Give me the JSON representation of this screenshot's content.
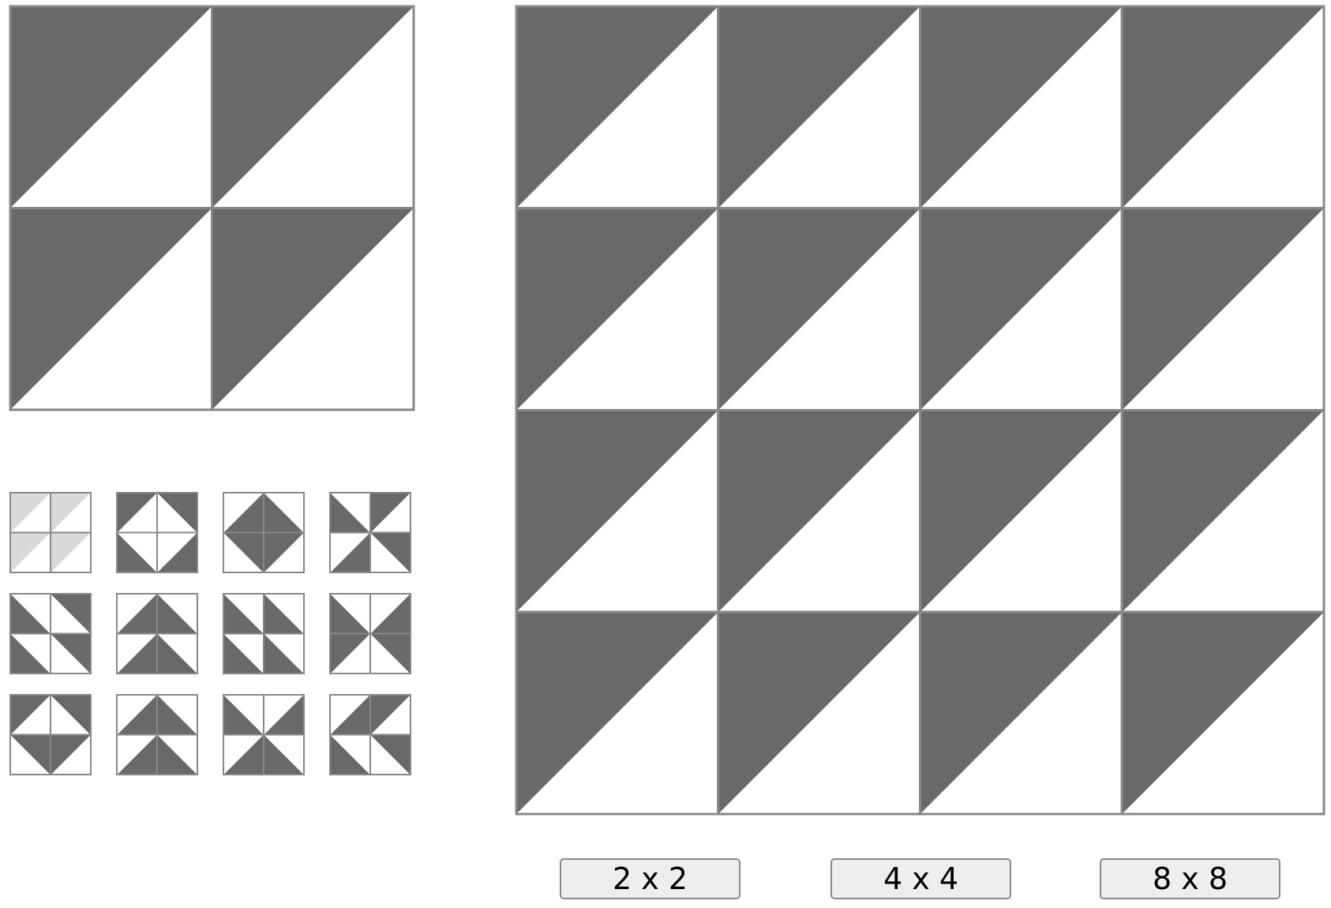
{
  "colors": {
    "dark": "#696969",
    "light": "#d9d9d9",
    "white": "#ffffff",
    "border": "#888888"
  },
  "current_block": {
    "grid": 2,
    "tiles": [
      "TL",
      "TL",
      "TL",
      "TL"
    ]
  },
  "pattern_options": [
    {
      "name": "pattern-option-1",
      "tiles": [
        "TL",
        "TL",
        "TL",
        "TL"
      ],
      "shade": "light"
    },
    {
      "name": "pattern-option-2",
      "tiles": [
        "TL",
        "TR",
        "BL",
        "BR"
      ],
      "shade": "dark"
    },
    {
      "name": "pattern-option-3",
      "tiles": [
        "BR",
        "BL",
        "TR",
        "TL"
      ],
      "shade": "dark"
    },
    {
      "name": "pattern-option-4",
      "tiles": [
        "BL",
        "TL",
        "BR",
        "TR"
      ],
      "shade": "dark"
    },
    {
      "name": "pattern-option-5",
      "tiles": [
        "BL",
        "TR",
        "BL",
        "TR"
      ],
      "shade": "dark"
    },
    {
      "name": "pattern-option-6",
      "tiles": [
        "BR",
        "BL",
        "BR",
        "BL"
      ],
      "shade": "dark"
    },
    {
      "name": "pattern-option-7",
      "tiles": [
        "BL",
        "BL",
        "BL",
        "BL"
      ],
      "shade": "dark"
    },
    {
      "name": "pattern-option-8",
      "tiles": [
        "BL",
        "BR",
        "TL",
        "TR"
      ],
      "shade": "dark"
    },
    {
      "name": "pattern-option-9",
      "tiles": [
        "TL",
        "TR",
        "TR",
        "TL"
      ],
      "shade": "dark"
    },
    {
      "name": "pattern-option-10",
      "tiles": [
        "BR",
        "BL",
        "BR",
        "BL"
      ],
      "shade": "dark"
    },
    {
      "name": "pattern-option-11",
      "tiles": [
        "BL",
        "BR",
        "BR",
        "BL"
      ],
      "shade": "dark"
    },
    {
      "name": "pattern-option-12",
      "tiles": [
        "BR",
        "TL",
        "BL",
        "TR"
      ],
      "shade": "dark"
    }
  ],
  "quilt": {
    "grid": 4,
    "tiles": [
      "TL",
      "TL",
      "TL",
      "TL",
      "TL",
      "TL",
      "TL",
      "TL",
      "TL",
      "TL",
      "TL",
      "TL",
      "TL",
      "TL",
      "TL",
      "TL"
    ]
  },
  "buttons": {
    "size_2": "2 x 2",
    "size_4": "4 x 4",
    "size_8": "8 x 8"
  }
}
